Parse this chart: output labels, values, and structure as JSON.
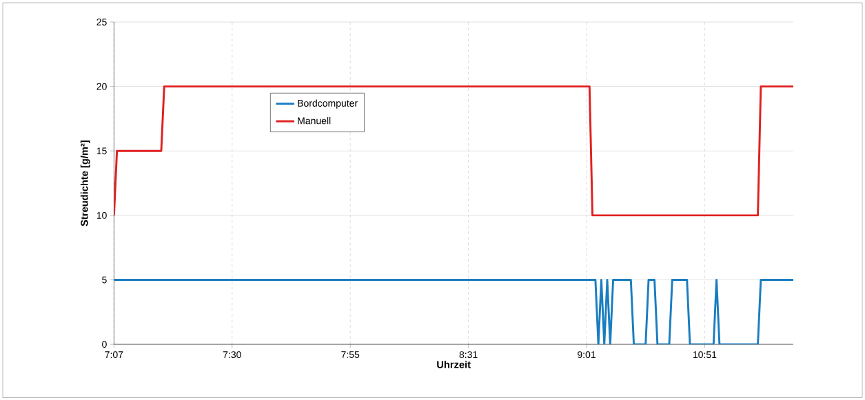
{
  "chart_data": {
    "type": "line",
    "xlabel": "Uhrzeit",
    "ylabel": "Streudichte [g/m²]",
    "categories": [
      "7:07",
      null,
      null,
      null,
      null,
      null,
      null,
      null,
      null,
      null,
      null,
      null,
      null,
      null,
      null,
      null,
      null,
      null,
      null,
      null,
      null,
      null,
      null,
      null,
      null,
      null,
      null,
      null,
      null,
      null,
      null,
      null,
      null,
      null,
      null,
      null,
      null,
      null,
      null,
      null,
      "7:30",
      null,
      null,
      null,
      null,
      null,
      null,
      null,
      null,
      null,
      null,
      null,
      null,
      null,
      null,
      null,
      null,
      null,
      null,
      null,
      null,
      null,
      null,
      null,
      null,
      null,
      null,
      null,
      null,
      null,
      null,
      null,
      null,
      null,
      null,
      null,
      null,
      null,
      null,
      null,
      "7:55",
      null,
      null,
      null,
      null,
      null,
      null,
      null,
      null,
      null,
      null,
      null,
      null,
      null,
      null,
      null,
      null,
      null,
      null,
      null,
      null,
      null,
      null,
      null,
      null,
      null,
      null,
      null,
      null,
      null,
      null,
      null,
      null,
      null,
      null,
      null,
      null,
      null,
      null,
      null,
      "8:31",
      null,
      null,
      null,
      null,
      null,
      null,
      null,
      null,
      null,
      null,
      null,
      null,
      null,
      null,
      null,
      null,
      null,
      null,
      null,
      null,
      null,
      null,
      null,
      null,
      null,
      null,
      null,
      null,
      null,
      null,
      null,
      null,
      null,
      null,
      null,
      null,
      null,
      null,
      null,
      "9:01",
      null,
      null,
      null,
      null,
      null,
      null,
      null,
      null,
      null,
      null,
      null,
      null,
      null,
      null,
      null,
      null,
      null,
      null,
      null,
      null,
      null,
      null,
      null,
      null,
      null,
      null,
      null,
      null,
      null,
      null,
      null,
      null,
      null,
      null,
      null,
      null,
      null,
      null,
      null,
      "10:51",
      null,
      null,
      null,
      null,
      null,
      null,
      null,
      null,
      null,
      null,
      null,
      null,
      null,
      null,
      null,
      null,
      null,
      null,
      null,
      null,
      null,
      null,
      null,
      null,
      null,
      null,
      null,
      null,
      null,
      null
    ],
    "ylim": [
      0,
      25
    ],
    "yticks": [
      0,
      5,
      10,
      15,
      20,
      25
    ],
    "grid": true,
    "legend": "top left",
    "line_style": "solid",
    "marker": "none",
    "series": [
      {
        "name": "Bordcomputer",
        "color": "#1a7dc0",
        "values": [
          5,
          5,
          5,
          5,
          5,
          5,
          5,
          5,
          5,
          5,
          5,
          5,
          5,
          5,
          5,
          5,
          5,
          5,
          5,
          5,
          5,
          5,
          5,
          5,
          5,
          5,
          5,
          5,
          5,
          5,
          5,
          5,
          5,
          5,
          5,
          5,
          5,
          5,
          5,
          5,
          5,
          5,
          5,
          5,
          5,
          5,
          5,
          5,
          5,
          5,
          5,
          5,
          5,
          5,
          5,
          5,
          5,
          5,
          5,
          5,
          5,
          5,
          5,
          5,
          5,
          5,
          5,
          5,
          5,
          5,
          5,
          5,
          5,
          5,
          5,
          5,
          5,
          5,
          5,
          5,
          5,
          5,
          5,
          5,
          5,
          5,
          5,
          5,
          5,
          5,
          5,
          5,
          5,
          5,
          5,
          5,
          5,
          5,
          5,
          5,
          5,
          5,
          5,
          5,
          5,
          5,
          5,
          5,
          5,
          5,
          5,
          5,
          5,
          5,
          5,
          5,
          5,
          5,
          5,
          5,
          5,
          5,
          5,
          5,
          5,
          5,
          5,
          5,
          5,
          5,
          5,
          5,
          5,
          5,
          5,
          5,
          5,
          5,
          5,
          5,
          5,
          5,
          5,
          5,
          5,
          5,
          5,
          5,
          5,
          5,
          5,
          5,
          5,
          5,
          5,
          5,
          5,
          5,
          5,
          5,
          5,
          5,
          5,
          5,
          0,
          5,
          0,
          5,
          0,
          5,
          5,
          5,
          5,
          5,
          5,
          5,
          0,
          0,
          0,
          0,
          0,
          5,
          5,
          5,
          0,
          0,
          0,
          0,
          0,
          5,
          5,
          5,
          5,
          5,
          5,
          0,
          0,
          0,
          0,
          0,
          0,
          0,
          0,
          0,
          5,
          0,
          0,
          0,
          0,
          0,
          0,
          0,
          0,
          0,
          0,
          0,
          0,
          0,
          0,
          5,
          5,
          5,
          5,
          5,
          5,
          5,
          5,
          5,
          5,
          5,
          5
        ]
      },
      {
        "name": "Manuell",
        "color": "#e02020",
        "values": [
          10,
          15,
          15,
          15,
          15,
          15,
          15,
          15,
          15,
          15,
          15,
          15,
          15,
          15,
          15,
          15,
          15,
          20,
          20,
          20,
          20,
          20,
          20,
          20,
          20,
          20,
          20,
          20,
          20,
          20,
          20,
          20,
          20,
          20,
          20,
          20,
          20,
          20,
          20,
          20,
          20,
          20,
          20,
          20,
          20,
          20,
          20,
          20,
          20,
          20,
          20,
          20,
          20,
          20,
          20,
          20,
          20,
          20,
          20,
          20,
          20,
          20,
          20,
          20,
          20,
          20,
          20,
          20,
          20,
          20,
          20,
          20,
          20,
          20,
          20,
          20,
          20,
          20,
          20,
          20,
          20,
          20,
          20,
          20,
          20,
          20,
          20,
          20,
          20,
          20,
          20,
          20,
          20,
          20,
          20,
          20,
          20,
          20,
          20,
          20,
          20,
          20,
          20,
          20,
          20,
          20,
          20,
          20,
          20,
          20,
          20,
          20,
          20,
          20,
          20,
          20,
          20,
          20,
          20,
          20,
          20,
          20,
          20,
          20,
          20,
          20,
          20,
          20,
          20,
          20,
          20,
          20,
          20,
          20,
          20,
          20,
          20,
          20,
          20,
          20,
          20,
          20,
          20,
          20,
          20,
          20,
          20,
          20,
          20,
          20,
          20,
          20,
          20,
          20,
          20,
          20,
          20,
          20,
          20,
          20,
          20,
          20,
          10,
          10,
          10,
          10,
          10,
          10,
          10,
          10,
          10,
          10,
          10,
          10,
          10,
          10,
          10,
          10,
          10,
          10,
          10,
          10,
          10,
          10,
          10,
          10,
          10,
          10,
          10,
          10,
          10,
          10,
          10,
          10,
          10,
          10,
          10,
          10,
          10,
          10,
          10,
          10,
          10,
          10,
          10,
          10,
          10,
          10,
          10,
          10,
          10,
          10,
          10,
          10,
          10,
          10,
          10,
          10,
          10,
          20,
          20,
          20,
          20,
          20,
          20,
          20,
          20,
          20,
          20,
          20,
          20
        ]
      }
    ]
  }
}
